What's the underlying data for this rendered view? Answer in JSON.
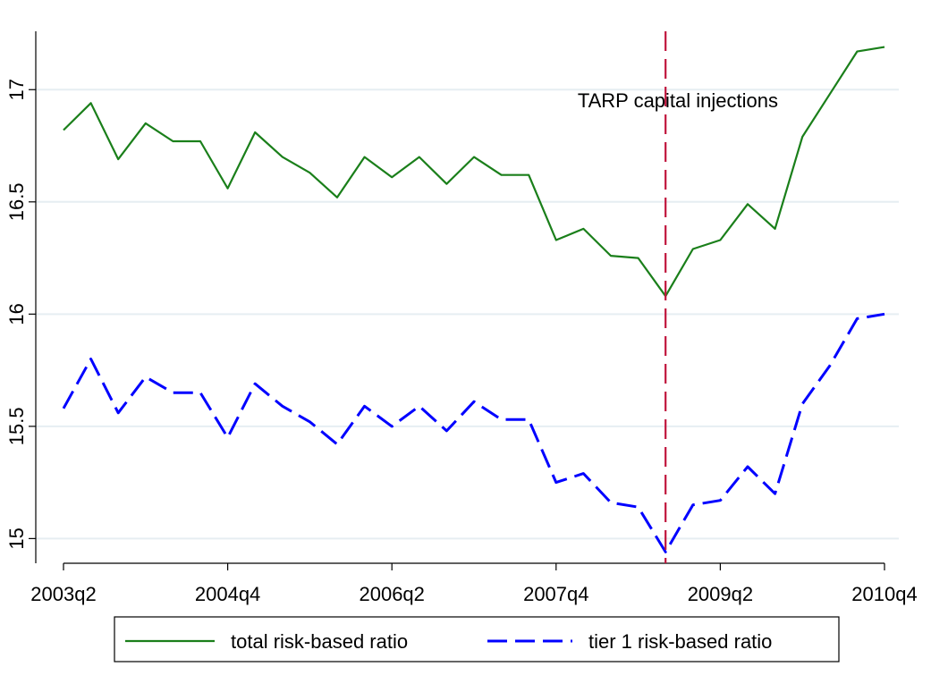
{
  "chart_data": {
    "type": "line",
    "categories": [
      "2003q2",
      null,
      null,
      null,
      null,
      null,
      "2004q4",
      null,
      null,
      null,
      null,
      null,
      "2006q2",
      null,
      null,
      null,
      null,
      null,
      "2007q4",
      null,
      null,
      null,
      null,
      null,
      "2009q2",
      null,
      null,
      null,
      null,
      null,
      "2010q4"
    ],
    "series": [
      {
        "name": "total risk-based ratio",
        "color": "#1a7f1a",
        "dash": "solid",
        "values": [
          16.82,
          16.94,
          16.69,
          16.85,
          16.77,
          16.77,
          16.56,
          16.81,
          16.7,
          16.63,
          16.52,
          16.7,
          16.61,
          16.7,
          16.58,
          16.7,
          16.62,
          16.62,
          16.33,
          16.38,
          16.26,
          16.25,
          16.08,
          16.29,
          16.33,
          16.49,
          16.38,
          16.79,
          16.98,
          17.17,
          17.19
        ]
      },
      {
        "name": "tier 1 risk-based ratio",
        "color": "#0000ff",
        "dash": "dashed",
        "values": [
          15.58,
          15.8,
          15.56,
          15.72,
          15.65,
          15.65,
          15.45,
          15.69,
          15.59,
          15.52,
          15.42,
          15.59,
          15.5,
          15.59,
          15.48,
          15.61,
          15.53,
          15.53,
          15.25,
          15.29,
          15.16,
          15.14,
          14.94,
          15.15,
          15.17,
          15.32,
          15.2,
          15.6,
          15.77,
          15.98,
          16.0
        ]
      }
    ],
    "annotation": "TARP capital injections",
    "ylim": [
      14.89,
      17.26
    ],
    "yticks": [
      15,
      15.5,
      16,
      16.5,
      17
    ],
    "grid": true
  }
}
